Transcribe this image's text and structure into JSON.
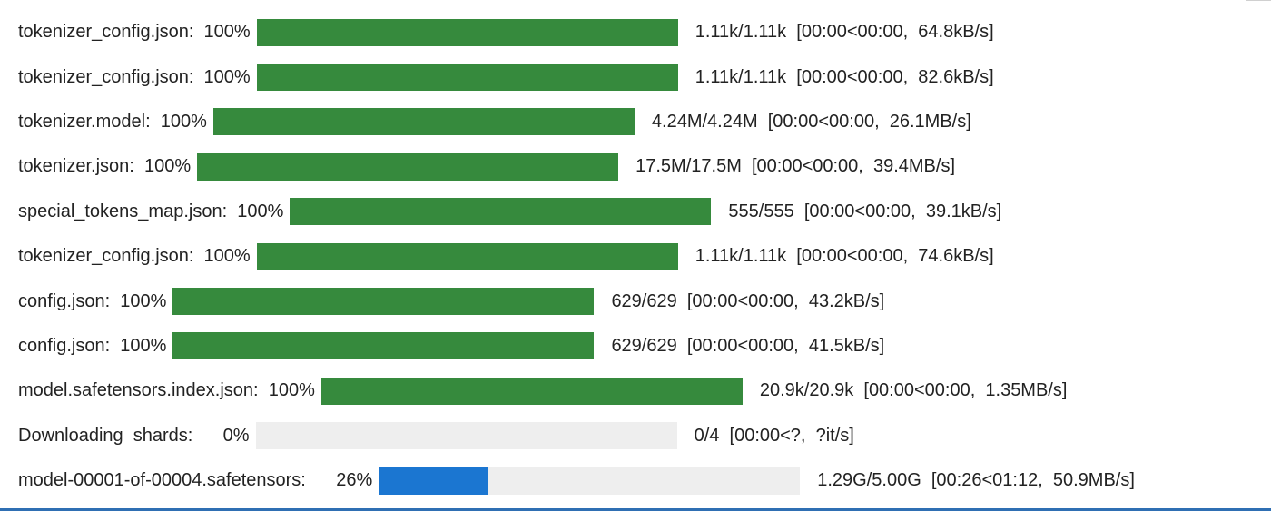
{
  "colors": {
    "complete": "#368a3d",
    "in_progress": "#1b76d1",
    "track": "#eeeeee"
  },
  "rows": [
    {
      "label": "tokenizer_config.json:  100%",
      "progress": 1.0,
      "state": "complete",
      "stats": "1.11k/1.11k  [00:00<00:00,  64.8kB/s]"
    },
    {
      "label": "tokenizer_config.json:  100%",
      "progress": 1.0,
      "state": "complete",
      "stats": "1.11k/1.11k  [00:00<00:00,  82.6kB/s]"
    },
    {
      "label": "tokenizer.model:  100%",
      "progress": 1.0,
      "state": "complete",
      "stats": "4.24M/4.24M  [00:00<00:00,  26.1MB/s]"
    },
    {
      "label": "tokenizer.json:  100%",
      "progress": 1.0,
      "state": "complete",
      "stats": "17.5M/17.5M  [00:00<00:00,  39.4MB/s]"
    },
    {
      "label": "special_tokens_map.json:  100%",
      "progress": 1.0,
      "state": "complete",
      "stats": "555/555  [00:00<00:00,  39.1kB/s]"
    },
    {
      "label": "tokenizer_config.json:  100%",
      "progress": 1.0,
      "state": "complete",
      "stats": "1.11k/1.11k  [00:00<00:00,  74.6kB/s]"
    },
    {
      "label": "config.json:  100%",
      "progress": 1.0,
      "state": "complete",
      "stats": "629/629  [00:00<00:00,  43.2kB/s]"
    },
    {
      "label": "config.json:  100%",
      "progress": 1.0,
      "state": "complete",
      "stats": "629/629  [00:00<00:00,  41.5kB/s]"
    },
    {
      "label": "model.safetensors.index.json:  100%",
      "progress": 1.0,
      "state": "complete",
      "stats": "20.9k/20.9k  [00:00<00:00,  1.35MB/s]"
    },
    {
      "label": "Downloading  shards:      0%",
      "progress": 0.0,
      "state": "pending",
      "stats": "0/4  [00:00<?,  ?it/s]"
    },
    {
      "label": "model-00001-of-00004.safetensors:      26%",
      "progress": 0.26,
      "state": "in_progress",
      "stats": "1.29G/5.00G  [00:26<01:12,  50.9MB/s]"
    }
  ]
}
